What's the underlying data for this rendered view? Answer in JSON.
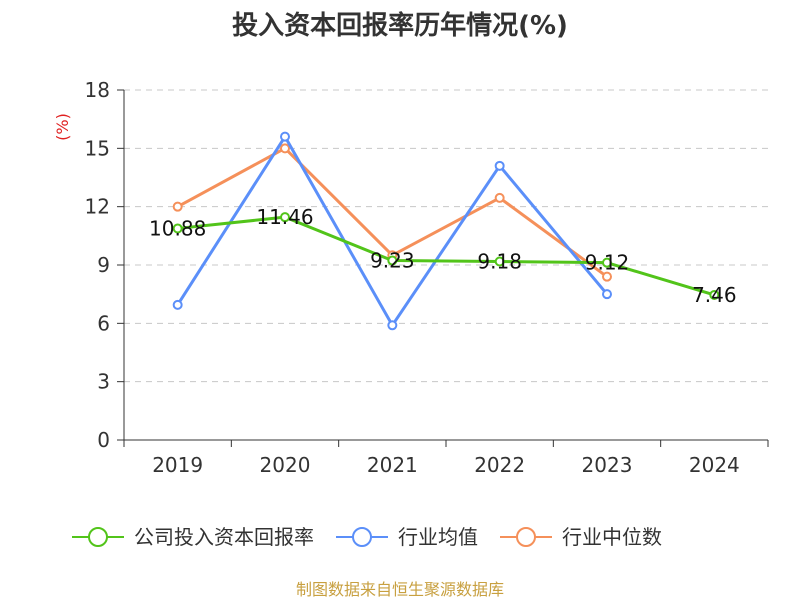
{
  "chart_data": {
    "type": "line",
    "title": "投入资本回报率历年情况(%)",
    "ylabel": "(%)",
    "xlabel": "",
    "categories": [
      "2019",
      "2020",
      "2021",
      "2022",
      "2023",
      "2024"
    ],
    "ylim": [
      0,
      18
    ],
    "yticks": [
      0,
      3,
      6,
      9,
      12,
      15,
      18
    ],
    "grid": true,
    "series": [
      {
        "name": "公司投入资本回报率",
        "color": "#52c41a",
        "values": [
          10.88,
          11.46,
          9.23,
          9.18,
          9.12,
          7.46
        ],
        "labels": [
          "10.88",
          "11.46",
          "9.23",
          "9.18",
          "9.12",
          "7.46"
        ]
      },
      {
        "name": "行业均值",
        "color": "#5b8ff9",
        "values": [
          6.95,
          15.6,
          5.9,
          14.1,
          7.5,
          null
        ]
      },
      {
        "name": "行业中位数",
        "color": "#f5905a",
        "values": [
          12.0,
          15.0,
          9.5,
          12.45,
          8.4,
          null
        ]
      }
    ]
  },
  "ylabel_color": "#e02020",
  "source": "制图数据来自恒生聚源数据库",
  "source_color": "#c8a040"
}
